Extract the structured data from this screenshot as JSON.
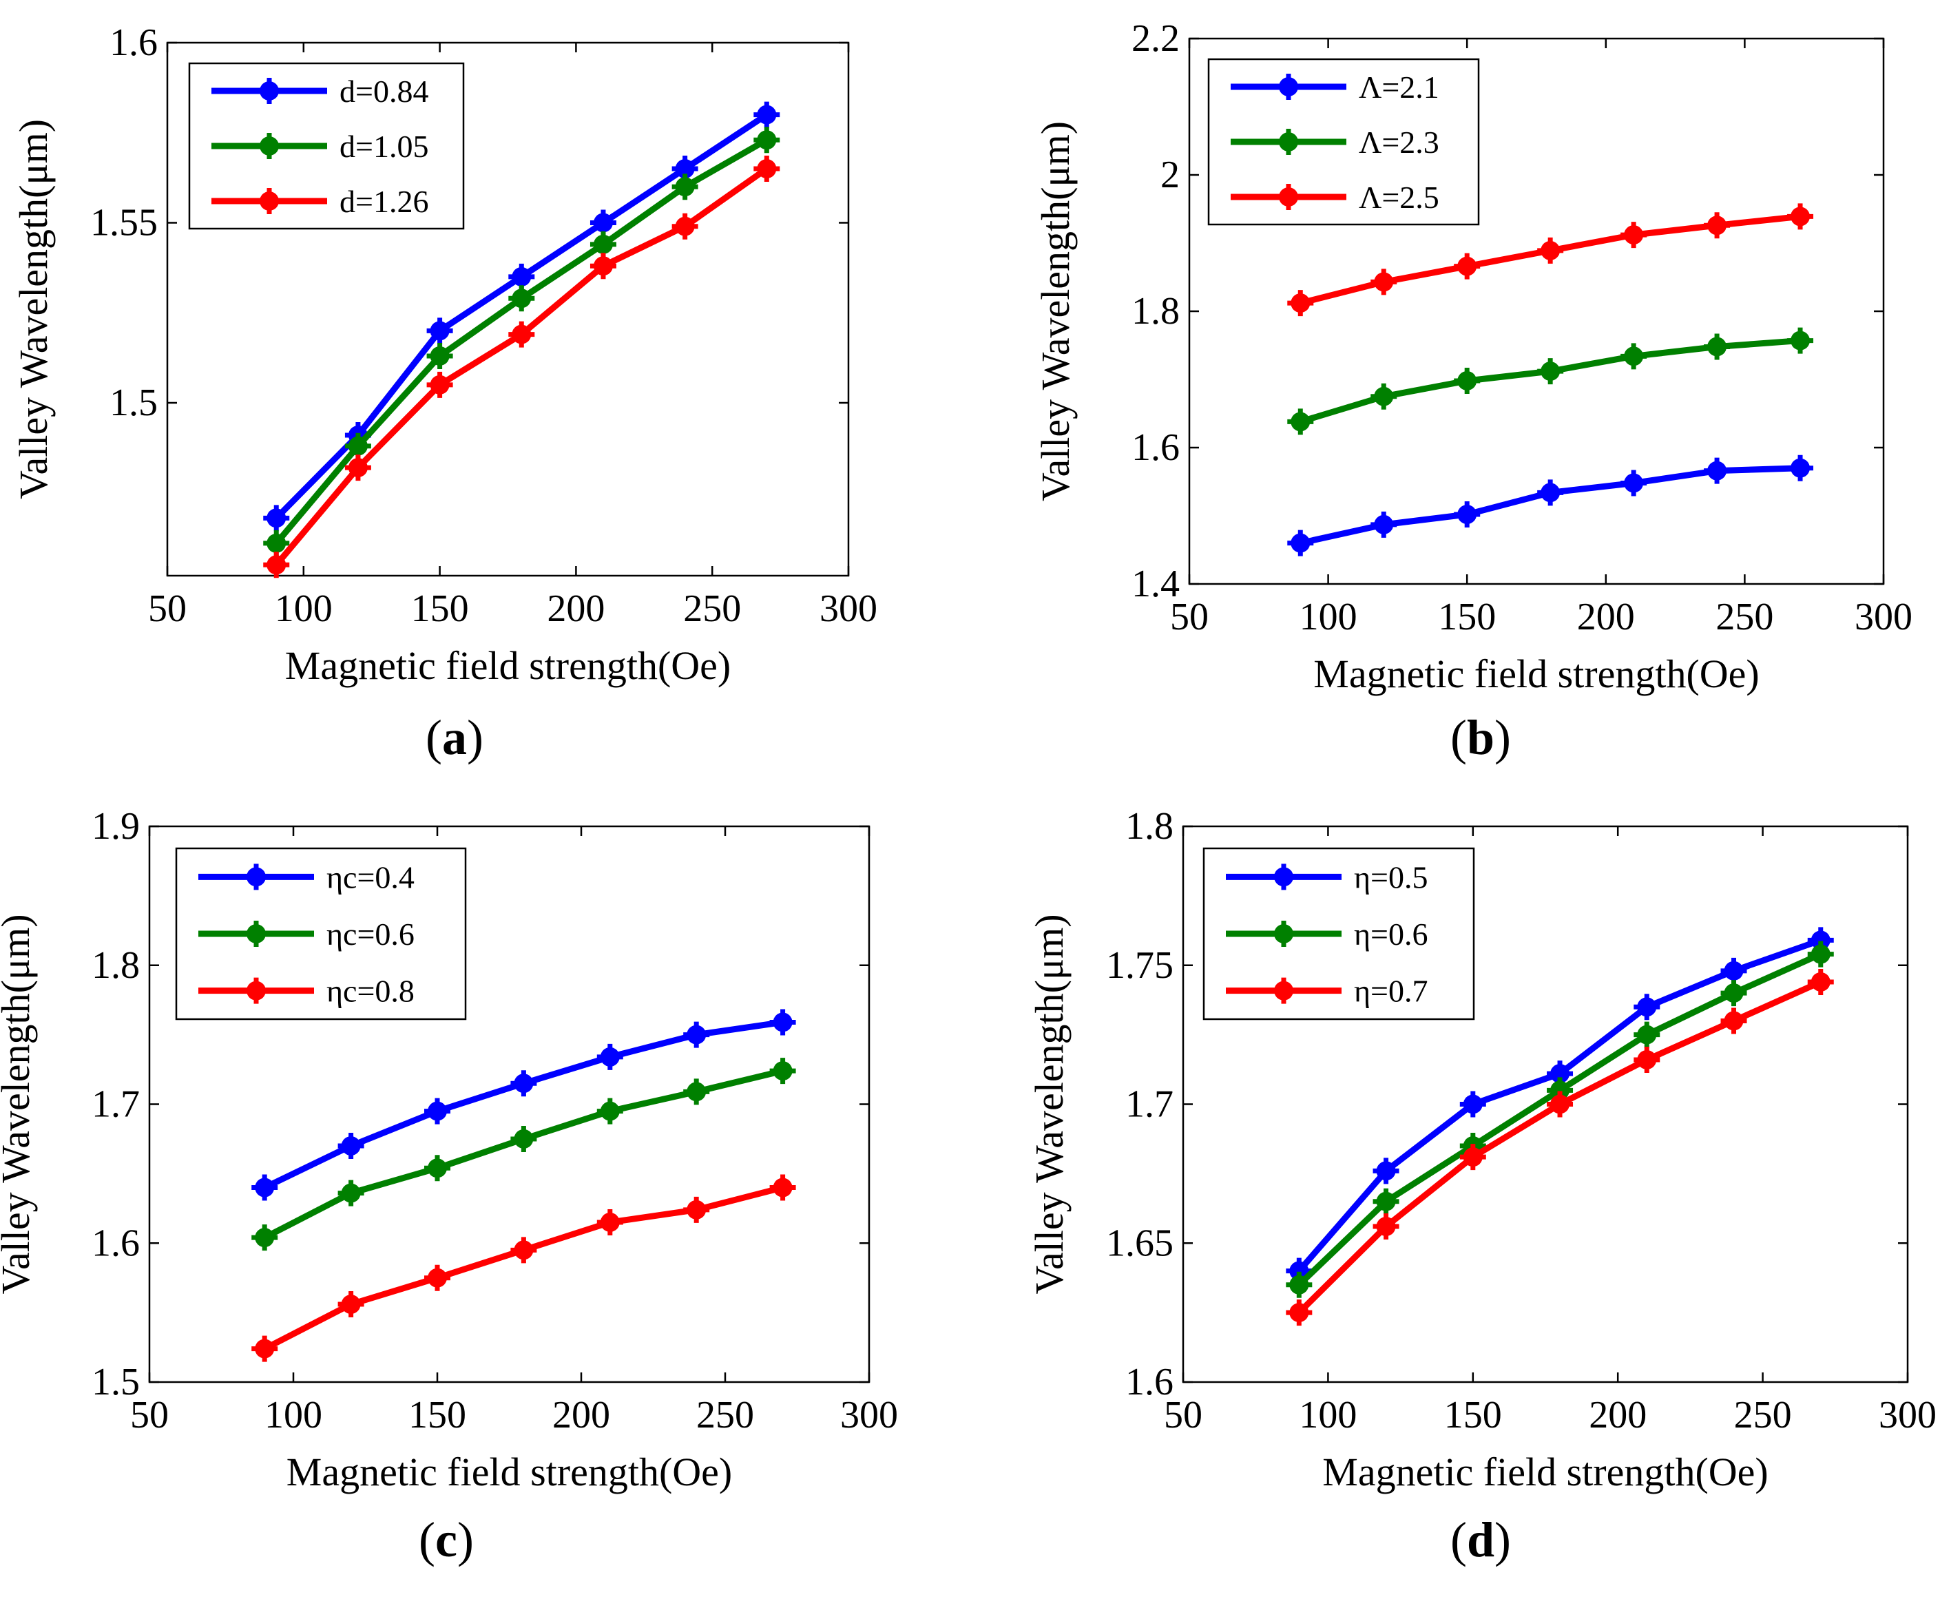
{
  "colors": {
    "blue": "#0000ff",
    "green": "#008000",
    "red": "#ff0000"
  },
  "chart_data": [
    {
      "type": "line",
      "panel": "(a)",
      "panel_letter": "a",
      "xlabel": "Magnetic field strength(Oe)",
      "ylabel": "Valley Wavelength(μm)",
      "xlim": [
        50,
        300
      ],
      "ylim": [
        1.452,
        1.6
      ],
      "xticks": [
        50,
        100,
        150,
        200,
        250,
        300
      ],
      "yticks": [
        1.5,
        1.55,
        1.6
      ],
      "ytick_labels": [
        "1.5",
        "1.55",
        "1.6"
      ],
      "legend_position": "top-left",
      "x": [
        90,
        120,
        150,
        180,
        210,
        240,
        270
      ],
      "series": [
        {
          "name": "d=0.84",
          "color": "#0000ff",
          "values": [
            1.468,
            1.491,
            1.52,
            1.535,
            1.55,
            1.565,
            1.58
          ]
        },
        {
          "name": "d=1.05",
          "color": "#008000",
          "values": [
            1.461,
            1.488,
            1.513,
            1.529,
            1.544,
            1.56,
            1.573
          ]
        },
        {
          "name": "d=1.26",
          "color": "#ff0000",
          "values": [
            1.455,
            1.482,
            1.505,
            1.519,
            1.538,
            1.549,
            1.565
          ]
        }
      ]
    },
    {
      "type": "line",
      "panel": "(b)",
      "panel_letter": "b",
      "xlabel": "Magnetic field strength(Oe)",
      "ylabel": "Valley Wavelength(μm)",
      "xlim": [
        50,
        300
      ],
      "ylim": [
        1.4,
        2.2
      ],
      "xticks": [
        50,
        100,
        150,
        200,
        250,
        300
      ],
      "yticks": [
        1.4,
        1.6,
        1.8,
        2.0,
        2.2
      ],
      "ytick_labels": [
        "1.4",
        "1.6",
        "1.8",
        "2",
        "2.2"
      ],
      "legend_position": "top-left",
      "x": [
        90,
        120,
        150,
        180,
        210,
        240,
        270
      ],
      "series": [
        {
          "name": "Λ=2.1",
          "color": "#0000ff",
          "values": [
            1.46,
            1.487,
            1.502,
            1.534,
            1.548,
            1.566,
            1.57
          ]
        },
        {
          "name": "Λ=2.3",
          "color": "#008000",
          "values": [
            1.638,
            1.675,
            1.698,
            1.712,
            1.734,
            1.748,
            1.757
          ]
        },
        {
          "name": "Λ=2.5",
          "color": "#ff0000",
          "values": [
            1.812,
            1.843,
            1.866,
            1.889,
            1.912,
            1.926,
            1.939
          ]
        }
      ]
    },
    {
      "type": "line",
      "panel": "(c)",
      "panel_letter": "c",
      "xlabel": "Magnetic field strength(Oe)",
      "ylabel": "Valley Wavelength(μm)",
      "xlim": [
        50,
        300
      ],
      "ylim": [
        1.5,
        1.9
      ],
      "xticks": [
        50,
        100,
        150,
        200,
        250,
        300
      ],
      "yticks": [
        1.5,
        1.6,
        1.7,
        1.8,
        1.9
      ],
      "ytick_labels": [
        "1.5",
        "1.6",
        "1.7",
        "1.8",
        "1.9"
      ],
      "legend_position": "top-left",
      "x": [
        90,
        120,
        150,
        180,
        210,
        240,
        270
      ],
      "series": [
        {
          "name": "ηc=0.4",
          "color": "#0000ff",
          "values": [
            1.64,
            1.67,
            1.695,
            1.715,
            1.734,
            1.75,
            1.759
          ]
        },
        {
          "name": "ηc=0.6",
          "color": "#008000",
          "values": [
            1.604,
            1.636,
            1.654,
            1.675,
            1.695,
            1.709,
            1.724
          ]
        },
        {
          "name": "ηc=0.8",
          "color": "#ff0000",
          "values": [
            1.524,
            1.556,
            1.575,
            1.595,
            1.615,
            1.624,
            1.64
          ]
        }
      ]
    },
    {
      "type": "line",
      "panel": "(d)",
      "panel_letter": "d",
      "xlabel": "Magnetic field strength(Oe)",
      "ylabel": "Valley Wavelength(μm)",
      "xlim": [
        50,
        300
      ],
      "ylim": [
        1.6,
        1.8
      ],
      "xticks": [
        50,
        100,
        150,
        200,
        250,
        300
      ],
      "yticks": [
        1.6,
        1.65,
        1.7,
        1.75,
        1.8
      ],
      "ytick_labels": [
        "1.6",
        "1.65",
        "1.7",
        "1.75",
        "1.8"
      ],
      "legend_position": "top-left",
      "x": [
        90,
        120,
        150,
        180,
        210,
        240,
        270
      ],
      "series": [
        {
          "name": "η=0.5",
          "color": "#0000ff",
          "values": [
            1.64,
            1.676,
            1.7,
            1.711,
            1.735,
            1.748,
            1.759
          ]
        },
        {
          "name": "η=0.6",
          "color": "#008000",
          "values": [
            1.635,
            1.665,
            1.685,
            1.705,
            1.725,
            1.74,
            1.754
          ]
        },
        {
          "name": "η=0.7",
          "color": "#ff0000",
          "values": [
            1.625,
            1.656,
            1.681,
            1.7,
            1.716,
            1.73,
            1.744
          ]
        }
      ]
    }
  ]
}
